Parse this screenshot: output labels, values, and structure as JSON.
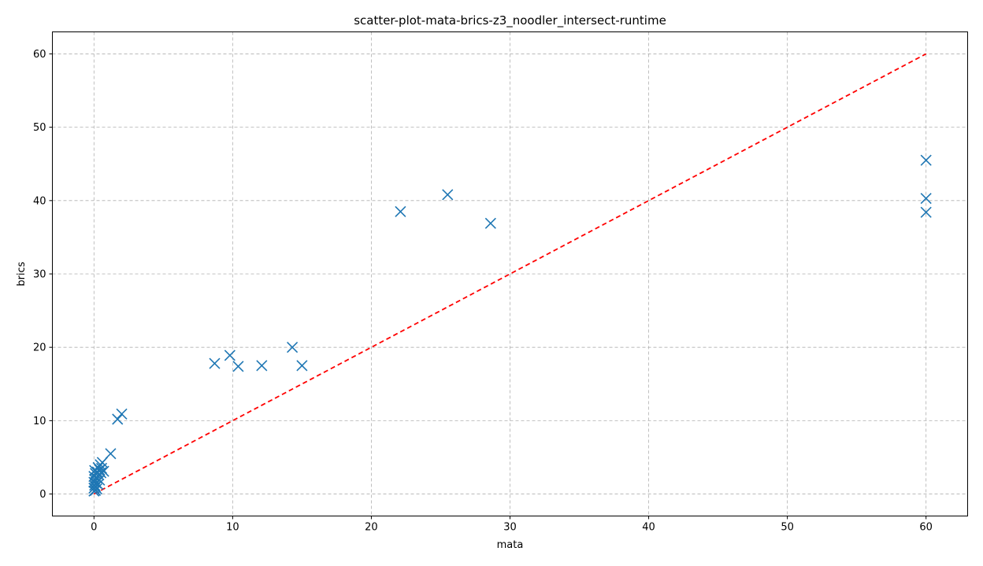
{
  "chart_data": {
    "type": "scatter",
    "title": "scatter-plot-mata-brics-z3_noodler_intersect-runtime",
    "xlabel": "mata",
    "ylabel": "brics",
    "xlim": [
      -3,
      63
    ],
    "ylim": [
      -3,
      63
    ],
    "x_ticks": [
      0,
      10,
      20,
      30,
      40,
      50,
      60
    ],
    "y_ticks": [
      0,
      10,
      20,
      30,
      40,
      50,
      60
    ],
    "grid": true,
    "marker": "x",
    "colors": {
      "points": "#1f77b4",
      "reference_line": "#ff0000",
      "grid": "#b0b0b0"
    },
    "reference_line": {
      "style": "dashed",
      "x": [
        0,
        60
      ],
      "y": [
        0,
        60
      ]
    },
    "series": [
      {
        "points": [
          [
            0.0,
            0.4
          ],
          [
            0.0,
            0.8
          ],
          [
            0.05,
            1.2
          ],
          [
            0.0,
            1.6
          ],
          [
            0.05,
            2.0
          ],
          [
            0.0,
            2.4
          ],
          [
            0.1,
            2.8
          ],
          [
            0.05,
            3.2
          ],
          [
            0.1,
            1.0
          ],
          [
            0.15,
            1.5
          ],
          [
            0.2,
            2.2
          ],
          [
            0.25,
            3.0
          ],
          [
            0.3,
            3.6
          ],
          [
            0.35,
            2.6
          ],
          [
            0.4,
            3.3
          ],
          [
            0.45,
            4.0
          ],
          [
            0.5,
            2.9
          ],
          [
            0.55,
            3.5
          ],
          [
            0.6,
            4.3
          ],
          [
            0.7,
            3.1
          ],
          [
            0.2,
            0.7
          ],
          [
            0.3,
            1.3
          ],
          [
            0.1,
            0.5
          ],
          [
            0.4,
            1.9
          ],
          [
            1.2,
            5.5
          ],
          [
            1.7,
            10.2
          ],
          [
            2.0,
            10.9
          ],
          [
            8.7,
            17.8
          ],
          [
            9.8,
            18.9
          ],
          [
            10.4,
            17.4
          ],
          [
            12.1,
            17.5
          ],
          [
            14.3,
            20.0
          ],
          [
            15.0,
            17.5
          ],
          [
            22.1,
            38.5
          ],
          [
            25.5,
            40.8
          ],
          [
            28.6,
            36.9
          ],
          [
            60.0,
            45.5
          ],
          [
            60.0,
            40.3
          ],
          [
            60.0,
            38.4
          ]
        ]
      }
    ]
  }
}
